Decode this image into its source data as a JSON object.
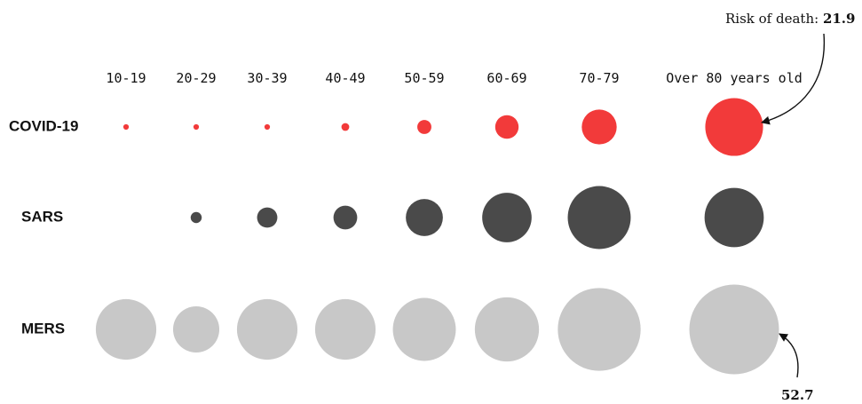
{
  "chart_data": {
    "type": "bubble",
    "categories": [
      "10-19",
      "20-29",
      "30-39",
      "40-49",
      "50-59",
      "60-69",
      "70-79",
      "Over 80 years old"
    ],
    "series": [
      {
        "name": "COVID-19",
        "values": [
          0.2,
          0.2,
          0.2,
          0.4,
          1.3,
          3.6,
          8.0,
          21.9
        ]
      },
      {
        "name": "SARS",
        "values": [
          null,
          0.8,
          2.7,
          3.7,
          9.0,
          16.0,
          26.0,
          23.0
        ]
      },
      {
        "name": "MERS",
        "values": [
          24.0,
          14.0,
          24.0,
          24.0,
          26.0,
          27.0,
          45.0,
          52.7
        ]
      }
    ],
    "colors": {
      "COVID-19": "#f23a3a",
      "SARS": "#4a4a4a",
      "MERS": "#c8c8c8"
    },
    "annotations": [
      {
        "label": "Risk of death: ",
        "value": "21.9",
        "series": "COVID-19",
        "category": "Over 80 years old"
      },
      {
        "label": "",
        "value": "52.7",
        "series": "MERS",
        "category": "Over 80 years old"
      }
    ]
  }
}
